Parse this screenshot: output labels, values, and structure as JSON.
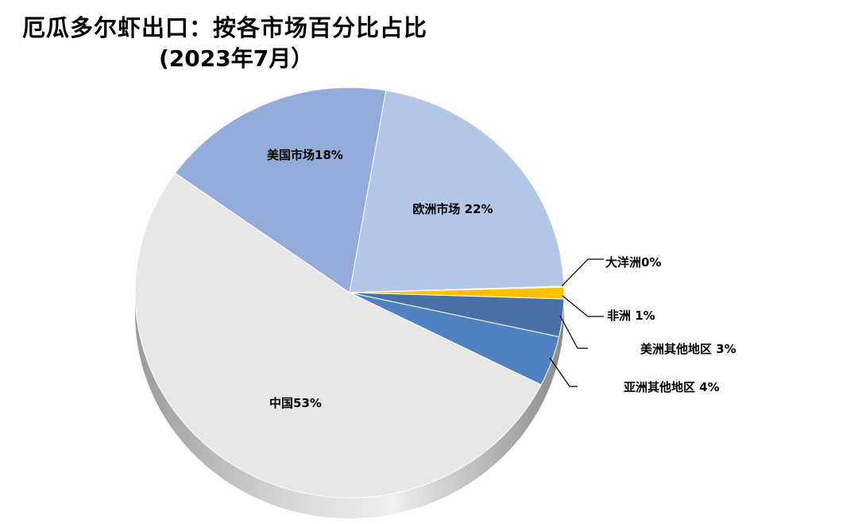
{
  "chart_data": {
    "type": "pie",
    "title": "厄瓜多尔虾出口：按各市场百分比占比",
    "subtitle": "(2023年7月）",
    "unit": "%",
    "slices": [
      {
        "label": "中国53%",
        "name": "中国",
        "value": 53,
        "color": "#e7e7e7"
      },
      {
        "label": "美国市场18%",
        "name": "美国市场",
        "value": 18,
        "color": "#93acd9"
      },
      {
        "label": "欧洲市场 22%",
        "name": "欧洲市场",
        "value": 22,
        "color": "#b4c6e7"
      },
      {
        "label": "大洋洲0%",
        "name": "大洋洲",
        "value": 0,
        "color": "#f2f2f2"
      },
      {
        "label": "非洲 1%",
        "name": "非洲",
        "value": 1,
        "color": "#ffc000"
      },
      {
        "label": "美洲其他地区 3%",
        "name": "美洲其他地区",
        "value": 3,
        "color": "#4a71a6"
      },
      {
        "label": "亚洲其他地区 4%",
        "name": "亚洲其他地区",
        "value": 4,
        "color": "#5081c0"
      }
    ]
  }
}
